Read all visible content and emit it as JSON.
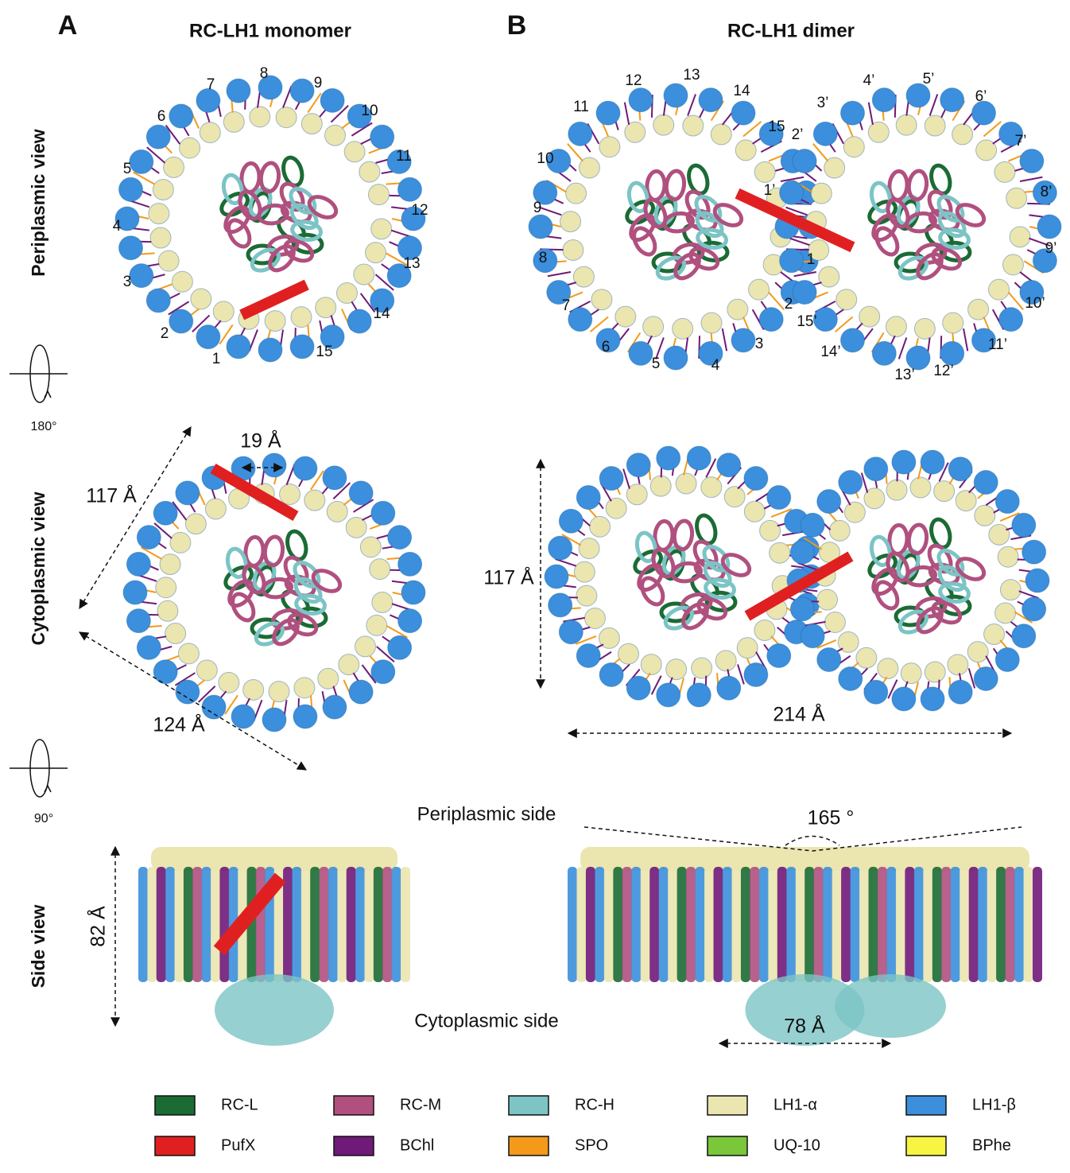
{
  "panels": [
    {
      "letter": "A",
      "title": "RC-LH1 monomer"
    },
    {
      "letter": "B",
      "title": "RC-LH1 dimer"
    }
  ],
  "row_labels": [
    "Periplasmic view",
    "Cytoplasmic view",
    "Side view"
  ],
  "rotations": [
    "180°",
    "90°"
  ],
  "monomer_subunits": [
    "1",
    "2",
    "3",
    "4",
    "5",
    "6",
    "7",
    "8",
    "9",
    "10",
    "11",
    "12",
    "13",
    "14",
    "15"
  ],
  "dimer_subunits": [
    "1",
    "2",
    "3",
    "4",
    "5",
    "6",
    "7",
    "8",
    "9",
    "10",
    "11",
    "12",
    "13",
    "14",
    "15",
    "1’",
    "2’",
    "3’",
    "4’",
    "5’",
    "6’",
    "7’",
    "8’",
    "9’",
    "10’",
    "11’",
    "12’",
    "13’",
    "14’",
    "15’"
  ],
  "dimensions": {
    "monomer_width": "117 Å",
    "monomer_gap": "19 Å",
    "monomer_diagonal": "124 Å",
    "dimer_height": "117 Å",
    "dimer_width": "214 Å",
    "side_height": "82 Å",
    "side_rc_distance": "78 Å",
    "angle": "165 °"
  },
  "side_labels": [
    "Periplasmic side",
    "Cytoplasmic side"
  ],
  "legend": [
    {
      "label": "RC-L",
      "color": "#1b6b34"
    },
    {
      "label": "RC-M",
      "color": "#b0507f"
    },
    {
      "label": "RC-H",
      "color": "#7cc4c6"
    },
    {
      "label": "LH1-α",
      "color": "#ebe5b0"
    },
    {
      "label": "LH1-β",
      "color": "#3b8fdc"
    },
    {
      "label": "PufX",
      "color": "#e02020"
    },
    {
      "label": "BChl",
      "color": "#6f1a78"
    },
    {
      "label": "SPO",
      "color": "#f39a1b"
    },
    {
      "label": "UQ-10",
      "color": "#7ac73a"
    },
    {
      "label": "BPhe",
      "color": "#f7f542"
    }
  ]
}
